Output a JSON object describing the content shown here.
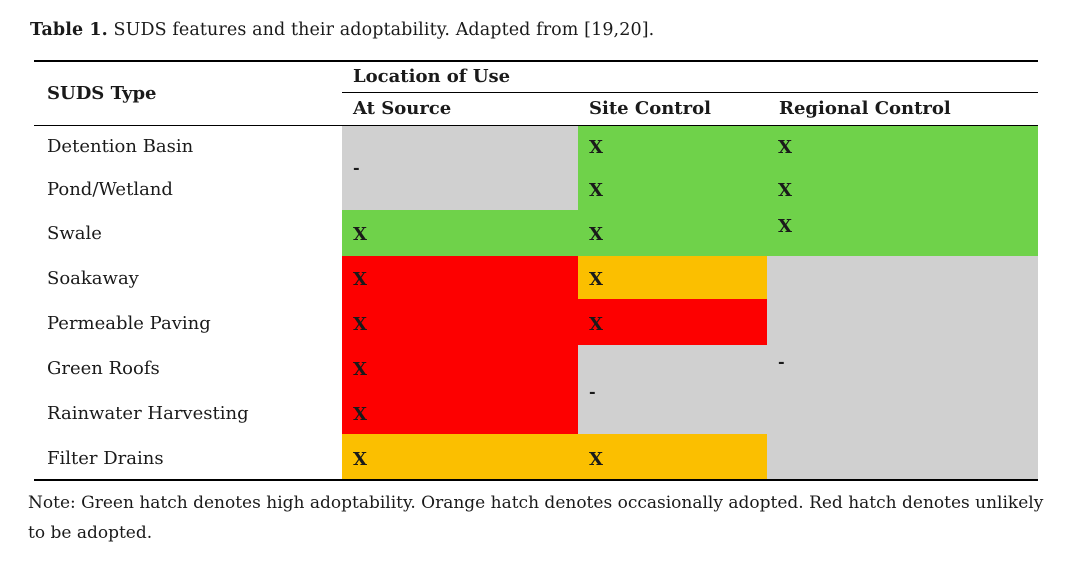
{
  "caption": {
    "label": "Table 1.",
    "text": " SUDS features and their adoptability. Adapted from [19,20]."
  },
  "header": {
    "type_col": "SUDS Type",
    "group": "Location of Use",
    "columns": [
      "At Source",
      "Site Control",
      "Regional Control"
    ]
  },
  "rows": [
    {
      "name": "Detention Basin",
      "cells": [
        "-",
        "X",
        "X"
      ]
    },
    {
      "name": "Pond/Wetland",
      "cells": [
        "-",
        "X",
        "X"
      ]
    },
    {
      "name": "Swale",
      "cells": [
        "X",
        "X",
        "X"
      ]
    },
    {
      "name": "Soakaway",
      "cells": [
        "X",
        "X",
        "-"
      ]
    },
    {
      "name": "Permeable Paving",
      "cells": [
        "X",
        "X",
        "-"
      ]
    },
    {
      "name": "Green Roofs",
      "cells": [
        "X",
        "-",
        "-"
      ]
    },
    {
      "name": "Rainwater Harvesting",
      "cells": [
        "X",
        "-",
        "-"
      ]
    },
    {
      "name": "Filter Drains",
      "cells": [
        "X",
        "X",
        "-"
      ]
    }
  ],
  "colors": {
    "green": "#6fd24a",
    "orange": "#fbbf00",
    "red": "#fd0000",
    "gray": "#d0d0d0"
  },
  "note": "Note: Green hatch denotes high adoptability. Orange hatch denotes occasionally adopted. Red hatch denotes unlikely to be adopted."
}
